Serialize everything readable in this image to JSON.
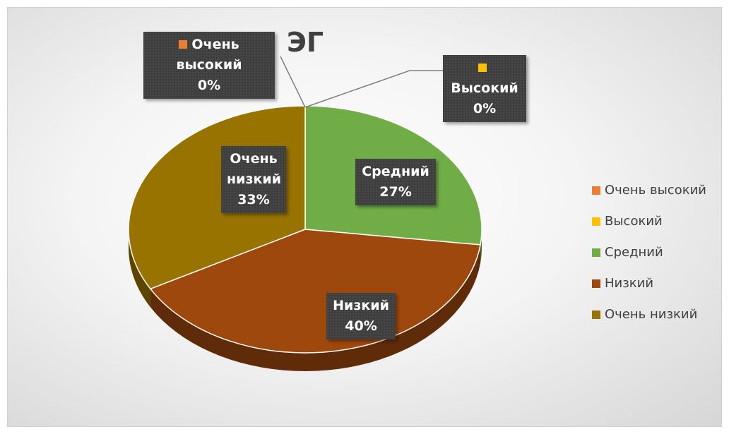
{
  "chart_data": {
    "type": "pie",
    "title": "ЭГ",
    "categories": [
      "Очень высокий",
      "Высокий",
      "Средний",
      "Низкий",
      "Очень низкий"
    ],
    "values": [
      0,
      0,
      27,
      40,
      33
    ],
    "value_labels": [
      "0%",
      "0%",
      "27%",
      "40%",
      "33%"
    ],
    "colors": [
      "#ED7D31",
      "#FFC000",
      "#70AD47",
      "#9E480E",
      "#997300"
    ],
    "legend": "right"
  }
}
